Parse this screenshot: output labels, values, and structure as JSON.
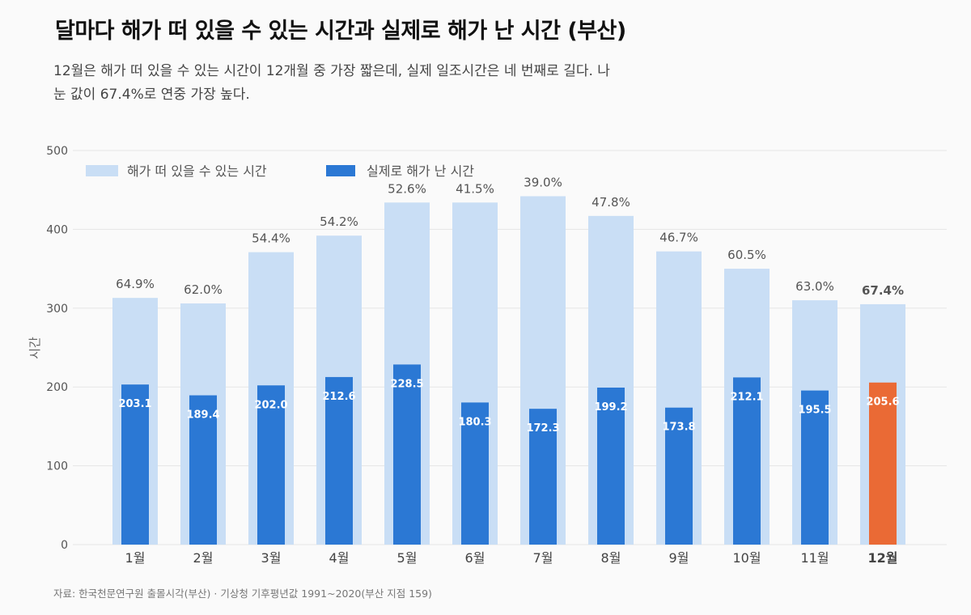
{
  "title": "달마다 해가 떠 있을 수 있는 시간과 실제로 해가 난 시간 (부산)",
  "subtitle": "12월은 해가 떠 있을 수 있는 시간이 12개월 중 가장 짧은데, 실제 일조시간은 네 번째로 길다. 나눈 값이 67.4%로 연중 가장 높다.",
  "source": "자료: 한국천문연구원 출몰시각(부산) · 기상청 기후평년값 1991~2020(부산 지점 159)",
  "colors": {
    "possible": "#c9def5",
    "actual": "#2b78d4",
    "highlight": "#ea6a35",
    "grid": "#e6e6e6"
  },
  "chart_data": {
    "type": "bar",
    "ylabel": "시간",
    "ylim": [
      0,
      500
    ],
    "yticks": [
      "0",
      "100",
      "200",
      "300",
      "400",
      "500"
    ],
    "categories": [
      "1월",
      "2월",
      "3월",
      "4월",
      "5월",
      "6월",
      "7월",
      "8월",
      "9월",
      "10월",
      "11월",
      "12월"
    ],
    "highlight_index": 11,
    "legend_position": "top-left",
    "series": [
      {
        "name": "해가 떠 있을 수 있는 시간",
        "values": [
          313,
          306,
          371,
          392,
          434,
          434,
          442,
          417,
          372,
          350,
          310,
          305
        ]
      },
      {
        "name": "실제로 해가 난 시간",
        "values": [
          203.1,
          189.4,
          202.0,
          212.6,
          228.5,
          180.3,
          172.3,
          199.2,
          173.8,
          212.1,
          195.5,
          205.6
        ],
        "labels": [
          "203.1",
          "189.4",
          "202.0",
          "212.6",
          "228.5",
          "180.3",
          "172.3",
          "199.2",
          "173.8",
          "212.1",
          "195.5",
          "205.6"
        ]
      }
    ],
    "ratio_labels": [
      "64.9%",
      "62.0%",
      "54.4%",
      "54.2%",
      "52.6%",
      "41.5%",
      "39.0%",
      "47.8%",
      "46.7%",
      "60.5%",
      "63.0%",
      "67.4%"
    ]
  }
}
